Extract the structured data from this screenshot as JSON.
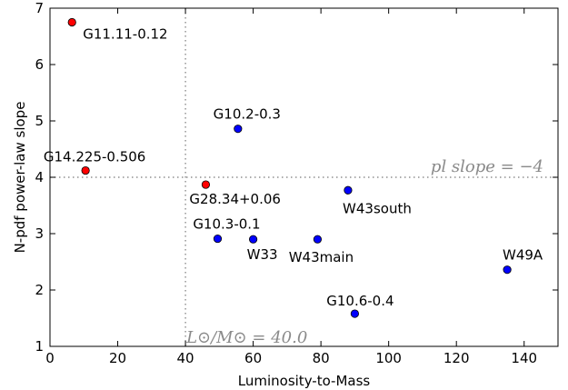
{
  "chart_data": {
    "type": "scatter",
    "xlabel": "Luminosity-to-Mass",
    "ylabel": "N-pdf power-law slope",
    "xlim": [
      0,
      150
    ],
    "ylim": [
      1,
      7
    ],
    "xticks": [
      0,
      20,
      40,
      60,
      80,
      100,
      120,
      140
    ],
    "yticks": [
      1,
      2,
      3,
      4,
      5,
      6,
      7
    ],
    "grid": false,
    "points": [
      {
        "label": "G11.11-0.12",
        "x": 6.5,
        "y": 6.75,
        "color": "#ff0000"
      },
      {
        "label": "G14.225-0.506",
        "x": 10.5,
        "y": 4.12,
        "color": "#ff0000"
      },
      {
        "label": "G28.34+0.06",
        "x": 46,
        "y": 3.87,
        "color": "#ff0000"
      },
      {
        "label": "G10.2-0.3",
        "x": 55.5,
        "y": 4.86,
        "color": "#0000ff"
      },
      {
        "label": "G10.3-0.1",
        "x": 49.5,
        "y": 2.91,
        "color": "#0000ff"
      },
      {
        "label": "W33",
        "x": 60,
        "y": 2.9,
        "color": "#0000ff"
      },
      {
        "label": "W43main",
        "x": 79,
        "y": 2.9,
        "color": "#0000ff"
      },
      {
        "label": "W43south",
        "x": 88,
        "y": 3.77,
        "color": "#0000ff"
      },
      {
        "label": "G10.6-0.4",
        "x": 90,
        "y": 1.58,
        "color": "#0000ff"
      },
      {
        "label": "W49A",
        "x": 135,
        "y": 2.36,
        "color": "#0000ff"
      }
    ],
    "reference_lines": [
      {
        "orientation": "horizontal",
        "value": 4,
        "label": "pl slope = −4"
      },
      {
        "orientation": "vertical",
        "value": 40,
        "label": "L⊙/M⊙ = 40.0"
      }
    ]
  }
}
